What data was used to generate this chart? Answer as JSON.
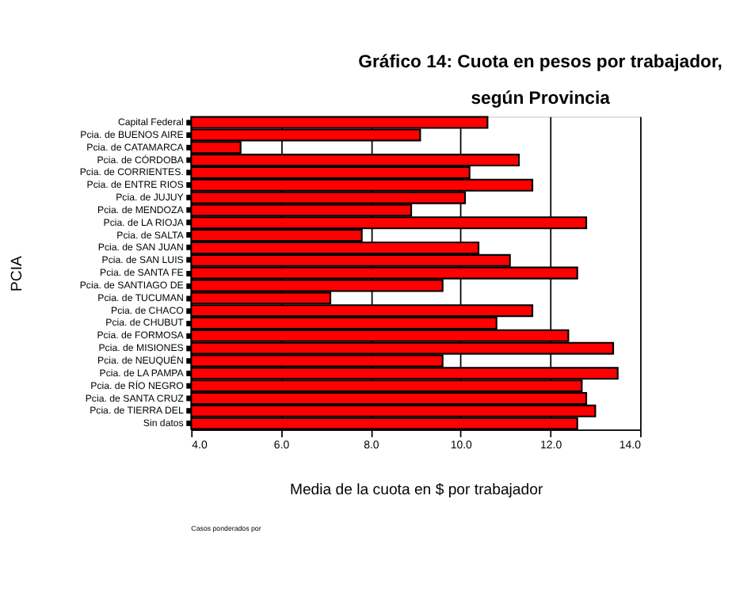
{
  "chart_data": {
    "type": "bar",
    "orientation": "horizontal",
    "title": [
      "Gráfico 14: Cuota en pesos por trabajador,",
      "según Provincia"
    ],
    "xlabel": "Media de la cuota en $ por trabajador",
    "ylabel": "PCIA",
    "categories": [
      "Capital Federal",
      "Pcia. de BUENOS AIRE",
      "Pcia. de CATAMARCA",
      "Pcia. de CÓRDOBA",
      "Pcia. de CORRIENTES.",
      "Pcia. de ENTRE RIOS",
      "Pcia. de JUJUY",
      "Pcia. de MENDOZA",
      "Pcia. de LA RIOJA",
      "Pcia. de SALTA",
      "Pcia. de SAN JUAN",
      "Pcia. de SAN LUIS",
      "Pcia. de SANTA FE",
      "Pcia. de SANTIAGO DE",
      "Pcia. de TUCUMAN",
      "Pcia. de CHACO",
      "Pcia. de CHUBUT",
      "Pcia. de FORMOSA",
      "Pcia. de MISIONES",
      "Pcia. de NEUQUÉN",
      "Pcia. de LA PAMPA",
      "Pcia. de RÍO NEGRO",
      "Pcia. de SANTA CRUZ",
      "Pcia. de TIERRA DEL",
      "Sin datos"
    ],
    "values": [
      10.6,
      9.1,
      5.1,
      11.3,
      10.2,
      11.6,
      10.1,
      8.9,
      12.8,
      7.8,
      10.4,
      11.1,
      12.6,
      9.6,
      7.1,
      11.6,
      10.8,
      12.4,
      13.4,
      9.6,
      13.5,
      12.7,
      12.8,
      13.0,
      12.6
    ],
    "color": "#ff0000",
    "xlim": [
      4,
      14
    ],
    "xticks": [
      {
        "value": 4,
        "label": "4.0"
      },
      {
        "value": 6,
        "label": "6.0"
      },
      {
        "value": 8,
        "label": "8.0"
      },
      {
        "value": 10,
        "label": "10.0"
      },
      {
        "value": 12,
        "label": "12.0"
      },
      {
        "value": 14,
        "label": "14.0"
      }
    ],
    "grid": "x",
    "annotations": [
      "Casos ponderados por"
    ]
  }
}
